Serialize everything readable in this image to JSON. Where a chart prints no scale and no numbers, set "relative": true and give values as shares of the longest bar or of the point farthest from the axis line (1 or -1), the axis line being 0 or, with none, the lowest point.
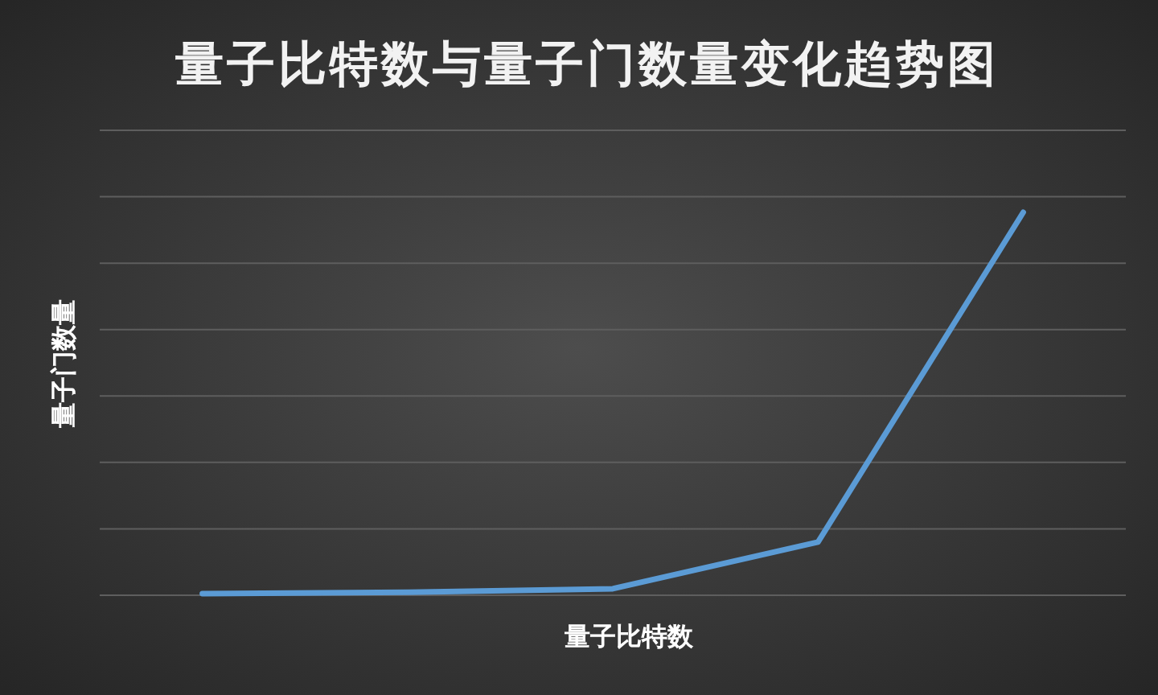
{
  "chart_data": {
    "type": "line",
    "title": "量子比特数与量子门数量变化趋势图",
    "xlabel": "量子比特数",
    "ylabel": "量子门数量",
    "categories": [
      null,
      null,
      null,
      null,
      null
    ],
    "relative": true,
    "grid": "y",
    "marker": "none",
    "line_style": "solid",
    "series": [
      {
        "color": "#5b9bd5",
        "values": [
          0.004,
          0.008,
          0.017,
          0.139,
          1
        ]
      }
    ]
  }
}
